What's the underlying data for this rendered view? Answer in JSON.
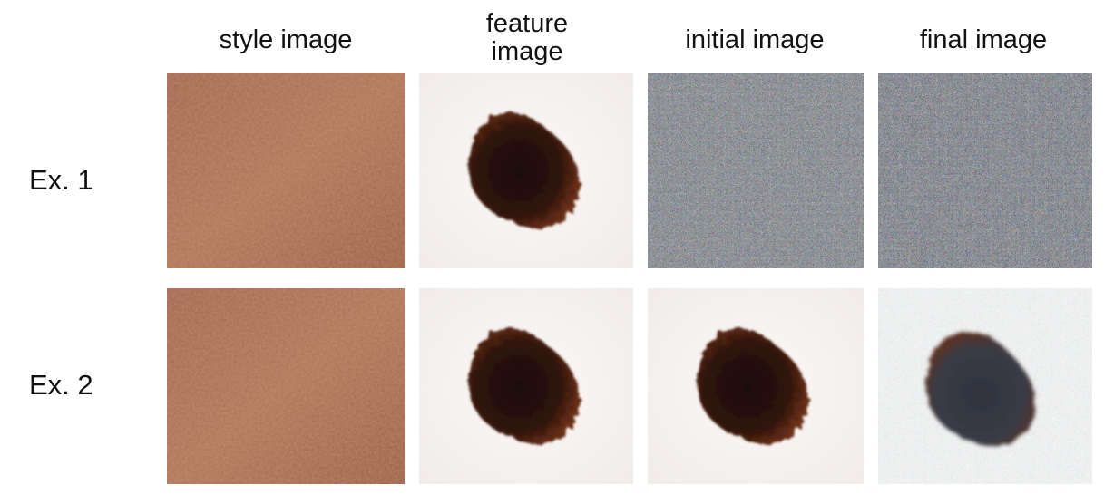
{
  "columns": [
    {
      "label": "style image"
    },
    {
      "label": "feature\nimage"
    },
    {
      "label": "initial image"
    },
    {
      "label": "final image"
    }
  ],
  "rows": [
    {
      "label": "Ex. 1"
    },
    {
      "label": "Ex. 2"
    }
  ],
  "colors": {
    "skin": "#a5674a",
    "skin_light": "#b98460",
    "lesion_dark": "#2a120b",
    "lesion_rim": "#5a2812",
    "background_white": "#f6f3f2",
    "noise_base": "#7e7886",
    "final_lesion": "#3a3b45"
  }
}
